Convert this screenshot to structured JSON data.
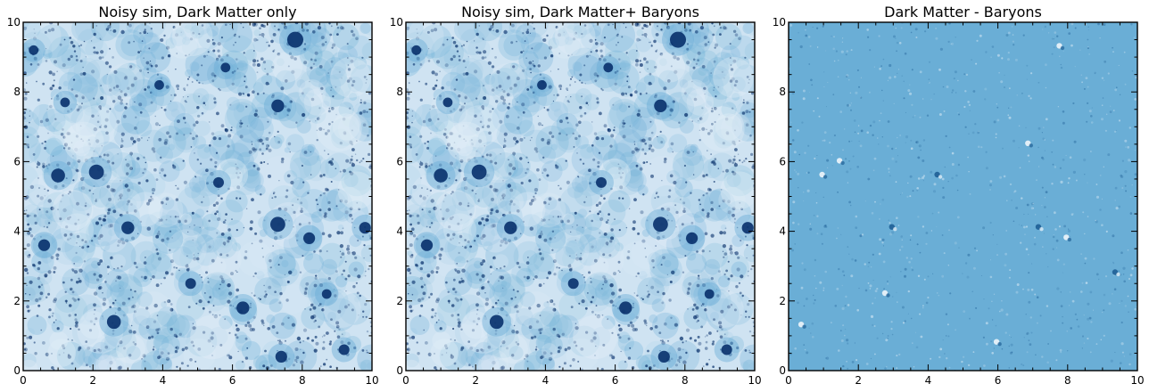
{
  "chart_data": [
    {
      "type": "heatmap",
      "title": "Noisy sim, Dark Matter only",
      "xlabel": "",
      "ylabel": "",
      "xlim": [
        0,
        10
      ],
      "ylim": [
        0,
        10
      ],
      "xticks": [
        "0",
        "2",
        "4",
        "6",
        "8",
        "10"
      ],
      "yticks": [
        "0",
        "2",
        "4",
        "6",
        "8",
        "10"
      ],
      "colormap": "Blues",
      "colors": {
        "low": "#cfe3f2",
        "mid": "#6aaed6",
        "high": "#08306b"
      },
      "features": [
        {
          "x": 7.8,
          "y": 9.5,
          "strength": 1.0
        },
        {
          "x": 2.1,
          "y": 5.7,
          "strength": 0.9
        },
        {
          "x": 7.3,
          "y": 4.2,
          "strength": 0.9
        },
        {
          "x": 1.0,
          "y": 5.6,
          "strength": 0.8
        },
        {
          "x": 2.6,
          "y": 1.4,
          "strength": 0.8
        },
        {
          "x": 3.0,
          "y": 4.1,
          "strength": 0.7
        },
        {
          "x": 6.3,
          "y": 1.8,
          "strength": 0.7
        },
        {
          "x": 7.3,
          "y": 7.6,
          "strength": 0.7
        },
        {
          "x": 0.6,
          "y": 3.6,
          "strength": 0.6
        },
        {
          "x": 8.2,
          "y": 3.8,
          "strength": 0.6
        },
        {
          "x": 5.6,
          "y": 5.4,
          "strength": 0.5
        },
        {
          "x": 4.8,
          "y": 2.5,
          "strength": 0.5
        },
        {
          "x": 9.8,
          "y": 4.1,
          "strength": 0.6
        },
        {
          "x": 9.2,
          "y": 0.6,
          "strength": 0.5
        },
        {
          "x": 7.4,
          "y": 0.4,
          "strength": 0.6
        },
        {
          "x": 3.9,
          "y": 8.2,
          "strength": 0.4
        },
        {
          "x": 1.2,
          "y": 7.7,
          "strength": 0.4
        },
        {
          "x": 5.8,
          "y": 8.7,
          "strength": 0.4
        },
        {
          "x": 8.7,
          "y": 2.2,
          "strength": 0.4
        },
        {
          "x": 0.3,
          "y": 9.2,
          "strength": 0.4
        }
      ]
    },
    {
      "type": "heatmap",
      "title": "Noisy sim, Dark Matter+ Baryons",
      "xlabel": "",
      "ylabel": "",
      "xlim": [
        0,
        10
      ],
      "ylim": [
        0,
        10
      ],
      "xticks": [
        "0",
        "2",
        "4",
        "6",
        "8",
        "10"
      ],
      "yticks": [
        "0",
        "2",
        "4",
        "6",
        "8",
        "10"
      ],
      "colormap": "Blues",
      "colors": {
        "low": "#cfe3f2",
        "mid": "#6aaed6",
        "high": "#08306b"
      }
    },
    {
      "type": "heatmap",
      "title": "Dark Matter - Baryons",
      "xlabel": "",
      "ylabel": "",
      "xlim": [
        0,
        10
      ],
      "ylim": [
        0,
        10
      ],
      "xticks": [
        "0",
        "2",
        "4",
        "6",
        "8",
        "10"
      ],
      "yticks": [
        "0",
        "2",
        "4",
        "6",
        "8",
        "10"
      ],
      "colormap": "Blues",
      "colors": {
        "background": "#6aaed6",
        "light": "#eef5fb",
        "dark": "#1f5f96"
      },
      "features": [
        {
          "x": 7.8,
          "y": 9.3,
          "sign": 1
        },
        {
          "x": 1.0,
          "y": 5.6,
          "sign": 1
        },
        {
          "x": 7.2,
          "y": 4.1,
          "sign": -1
        },
        {
          "x": 2.8,
          "y": 2.2,
          "sign": 1
        },
        {
          "x": 6.9,
          "y": 6.5,
          "sign": 1
        },
        {
          "x": 1.5,
          "y": 6.0,
          "sign": 1
        },
        {
          "x": 8.0,
          "y": 3.8,
          "sign": 1
        },
        {
          "x": 3.0,
          "y": 4.1,
          "sign": -1
        },
        {
          "x": 6.0,
          "y": 0.8,
          "sign": 1
        },
        {
          "x": 4.3,
          "y": 5.6,
          "sign": -1
        },
        {
          "x": 0.4,
          "y": 1.3,
          "sign": 1
        },
        {
          "x": 9.4,
          "y": 2.8,
          "sign": -1
        }
      ]
    }
  ]
}
